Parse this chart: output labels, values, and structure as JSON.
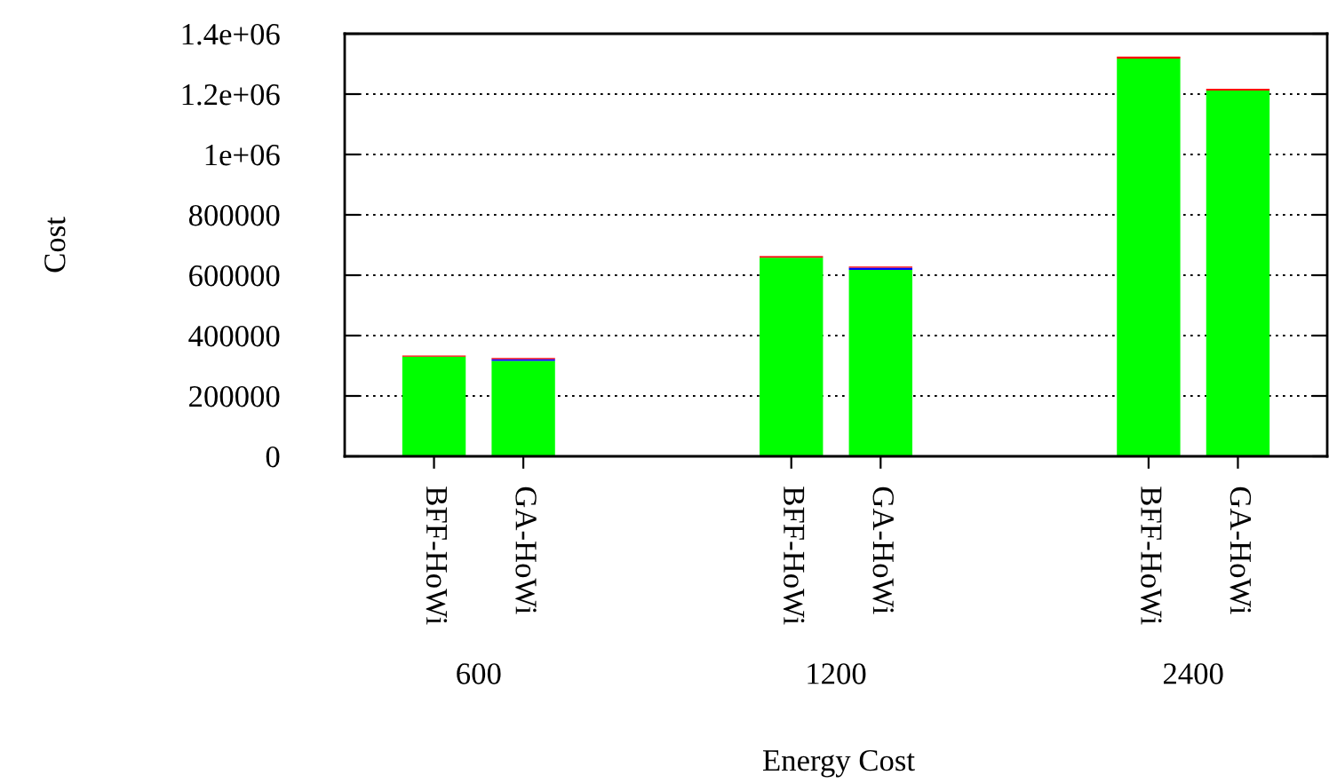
{
  "chart_data": {
    "type": "bar",
    "stacked": true,
    "xlabel": "Energy Cost",
    "ylabel": "Cost",
    "categories": [
      "BFF-HoWi",
      "GA-HoWi",
      null,
      null,
      "BFF-HoWi",
      "GA-HoWi",
      null,
      null,
      "BFF-HoWi",
      "GA-HoWi"
    ],
    "series": [
      {
        "color": "#00ff00",
        "values": [
          330000,
          316000,
          null,
          null,
          658000,
          618000,
          null,
          null,
          1318000,
          1212000
        ]
      },
      {
        "color": "#0000ff",
        "values": [
          null,
          6000,
          null,
          null,
          null,
          7000,
          null,
          null,
          null,
          null
        ]
      },
      {
        "color": "#ff0000",
        "values": [
          4000,
          4000,
          null,
          null,
          5000,
          4000,
          null,
          null,
          6000,
          6000
        ]
      }
    ],
    "ylim": [
      0,
      1400000
    ],
    "yticks": [
      0,
      200000,
      400000,
      600000,
      800000,
      {
        "value": 1000000,
        "label": "1e+06"
      },
      {
        "value": 1200000,
        "label": "1.2e+06"
      },
      {
        "value": 1400000,
        "label": "1.4e+06"
      }
    ],
    "grid": "y",
    "annotations": [
      "600",
      "1200",
      "2400"
    ]
  }
}
